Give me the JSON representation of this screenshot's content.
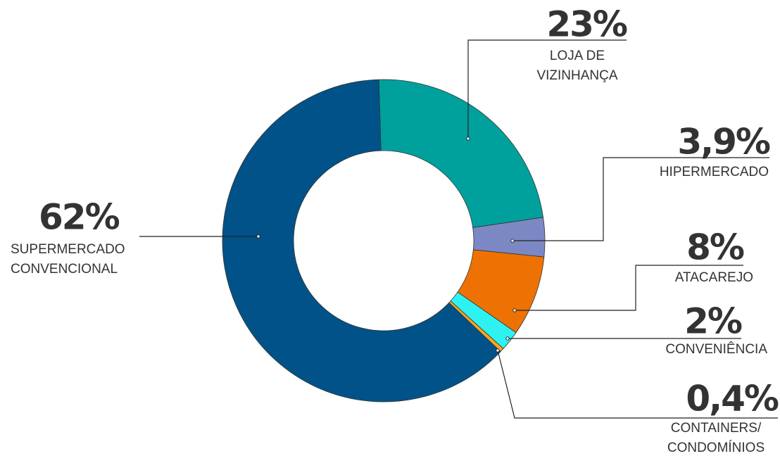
{
  "chart_data": {
    "type": "donut",
    "categories": [
      [
        "LOJA DE",
        "VIZINHANÇA"
      ],
      [
        "HIPERMERCADO"
      ],
      [
        "ATACAREJO"
      ],
      [
        "CONVENIÊNCIA"
      ],
      [
        "CONTAINERS/",
        "CONDOMÍNIOS"
      ],
      [
        "SUPERMERCADO",
        "CONVENCIONAL"
      ]
    ],
    "values": [
      23,
      3.9,
      8,
      2,
      0.4,
      62
    ],
    "value_labels": [
      "23%",
      "3,9%",
      "8%",
      "2%",
      "0,4%",
      "62%"
    ],
    "colors": [
      "#00a09d",
      "#7b88c4",
      "#ee7203",
      "#2ef2f2",
      "#f5a623",
      "#005288"
    ]
  }
}
